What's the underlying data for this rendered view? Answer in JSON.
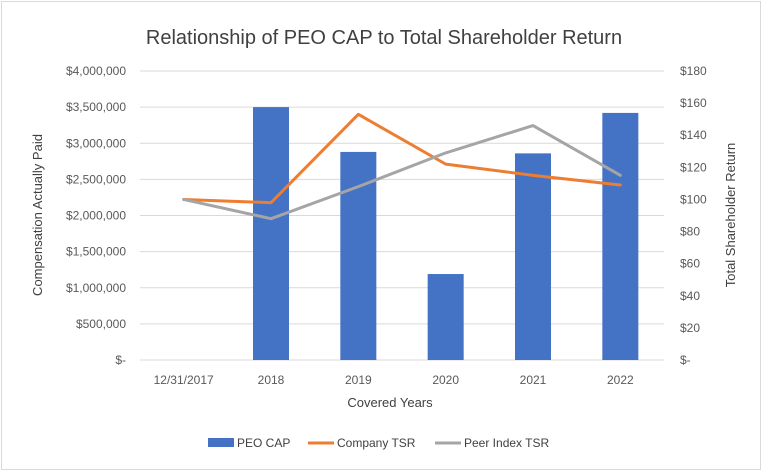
{
  "chart_data": {
    "type": "bar+line",
    "title": "Relationship of PEO CAP to Total Shareholder Return",
    "xlabel": "Covered Years",
    "ylabel_left": "Compensation Actually Paid",
    "ylabel_right": "Total Shareholder Return",
    "categories": [
      "12/31/2017",
      "2018",
      "2019",
      "2020",
      "2021",
      "2022"
    ],
    "ylim_left": [
      0,
      4000000
    ],
    "ylim_right": [
      0,
      180
    ],
    "left_ticks": [
      "$-",
      "$500,000",
      "$1,000,000",
      "$1,500,000",
      "$2,000,000",
      "$2,500,000",
      "$3,000,000",
      "$3,500,000",
      "$4,000,000"
    ],
    "right_ticks": [
      "$-",
      "$20",
      "$40",
      "$60",
      "$80",
      "$100",
      "$120",
      "$140",
      "$160",
      "$180"
    ],
    "grid": true,
    "legend_position": "bottom",
    "series": [
      {
        "name": "PEO CAP",
        "type": "bar",
        "axis": "left",
        "color": "#4472c4",
        "values": [
          null,
          3500000,
          2880000,
          1190000,
          2860000,
          3420000
        ]
      },
      {
        "name": "Company TSR",
        "type": "line",
        "axis": "right",
        "color": "#ed7d31",
        "values": [
          100,
          98,
          153,
          122,
          115,
          109
        ]
      },
      {
        "name": "Peer Index TSR",
        "type": "line",
        "axis": "right",
        "color": "#a5a5a5",
        "values": [
          100,
          88,
          108,
          129,
          146,
          115
        ]
      }
    ]
  }
}
